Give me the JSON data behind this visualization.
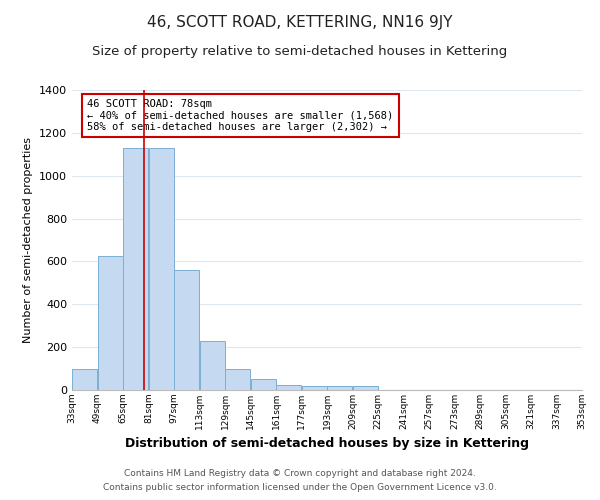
{
  "title": "46, SCOTT ROAD, KETTERING, NN16 9JY",
  "subtitle": "Size of property relative to semi-detached houses in Kettering",
  "xlabel": "Distribution of semi-detached houses by size in Kettering",
  "ylabel": "Number of semi-detached properties",
  "bin_edges": [
    33,
    49,
    65,
    81,
    97,
    113,
    129,
    145,
    161,
    177,
    193,
    209,
    225,
    241,
    257,
    273,
    289,
    305,
    321,
    337,
    353
  ],
  "bar_heights": [
    100,
    625,
    1130,
    1130,
    560,
    230,
    100,
    50,
    25,
    20,
    20,
    20,
    0,
    0,
    0,
    0,
    0,
    0,
    0,
    0
  ],
  "bar_color": "#c5d9f1",
  "bar_edgecolor": "#7bafd4",
  "vline_x": 78,
  "vline_color": "#cc0000",
  "ylim": [
    0,
    1400
  ],
  "yticks": [
    0,
    200,
    400,
    600,
    800,
    1000,
    1200,
    1400
  ],
  "annotation_title": "46 SCOTT ROAD: 78sqm",
  "annotation_line1": "← 40% of semi-detached houses are smaller (1,568)",
  "annotation_line2": "58% of semi-detached houses are larger (2,302) →",
  "annotation_box_edgecolor": "#cc0000",
  "footer1": "Contains HM Land Registry data © Crown copyright and database right 2024.",
  "footer2": "Contains public sector information licensed under the Open Government Licence v3.0.",
  "title_fontsize": 11,
  "subtitle_fontsize": 9.5,
  "xlabel_fontsize": 9,
  "ylabel_fontsize": 8,
  "footer_fontsize": 6.5,
  "background_color": "#ffffff",
  "grid_color": "#dde8f0",
  "tick_labels": [
    "33sqm",
    "49sqm",
    "65sqm",
    "81sqm",
    "97sqm",
    "113sqm",
    "129sqm",
    "145sqm",
    "161sqm",
    "177sqm",
    "193sqm",
    "209sqm",
    "225sqm",
    "241sqm",
    "257sqm",
    "273sqm",
    "289sqm",
    "305sqm",
    "321sqm",
    "337sqm",
    "353sqm"
  ]
}
